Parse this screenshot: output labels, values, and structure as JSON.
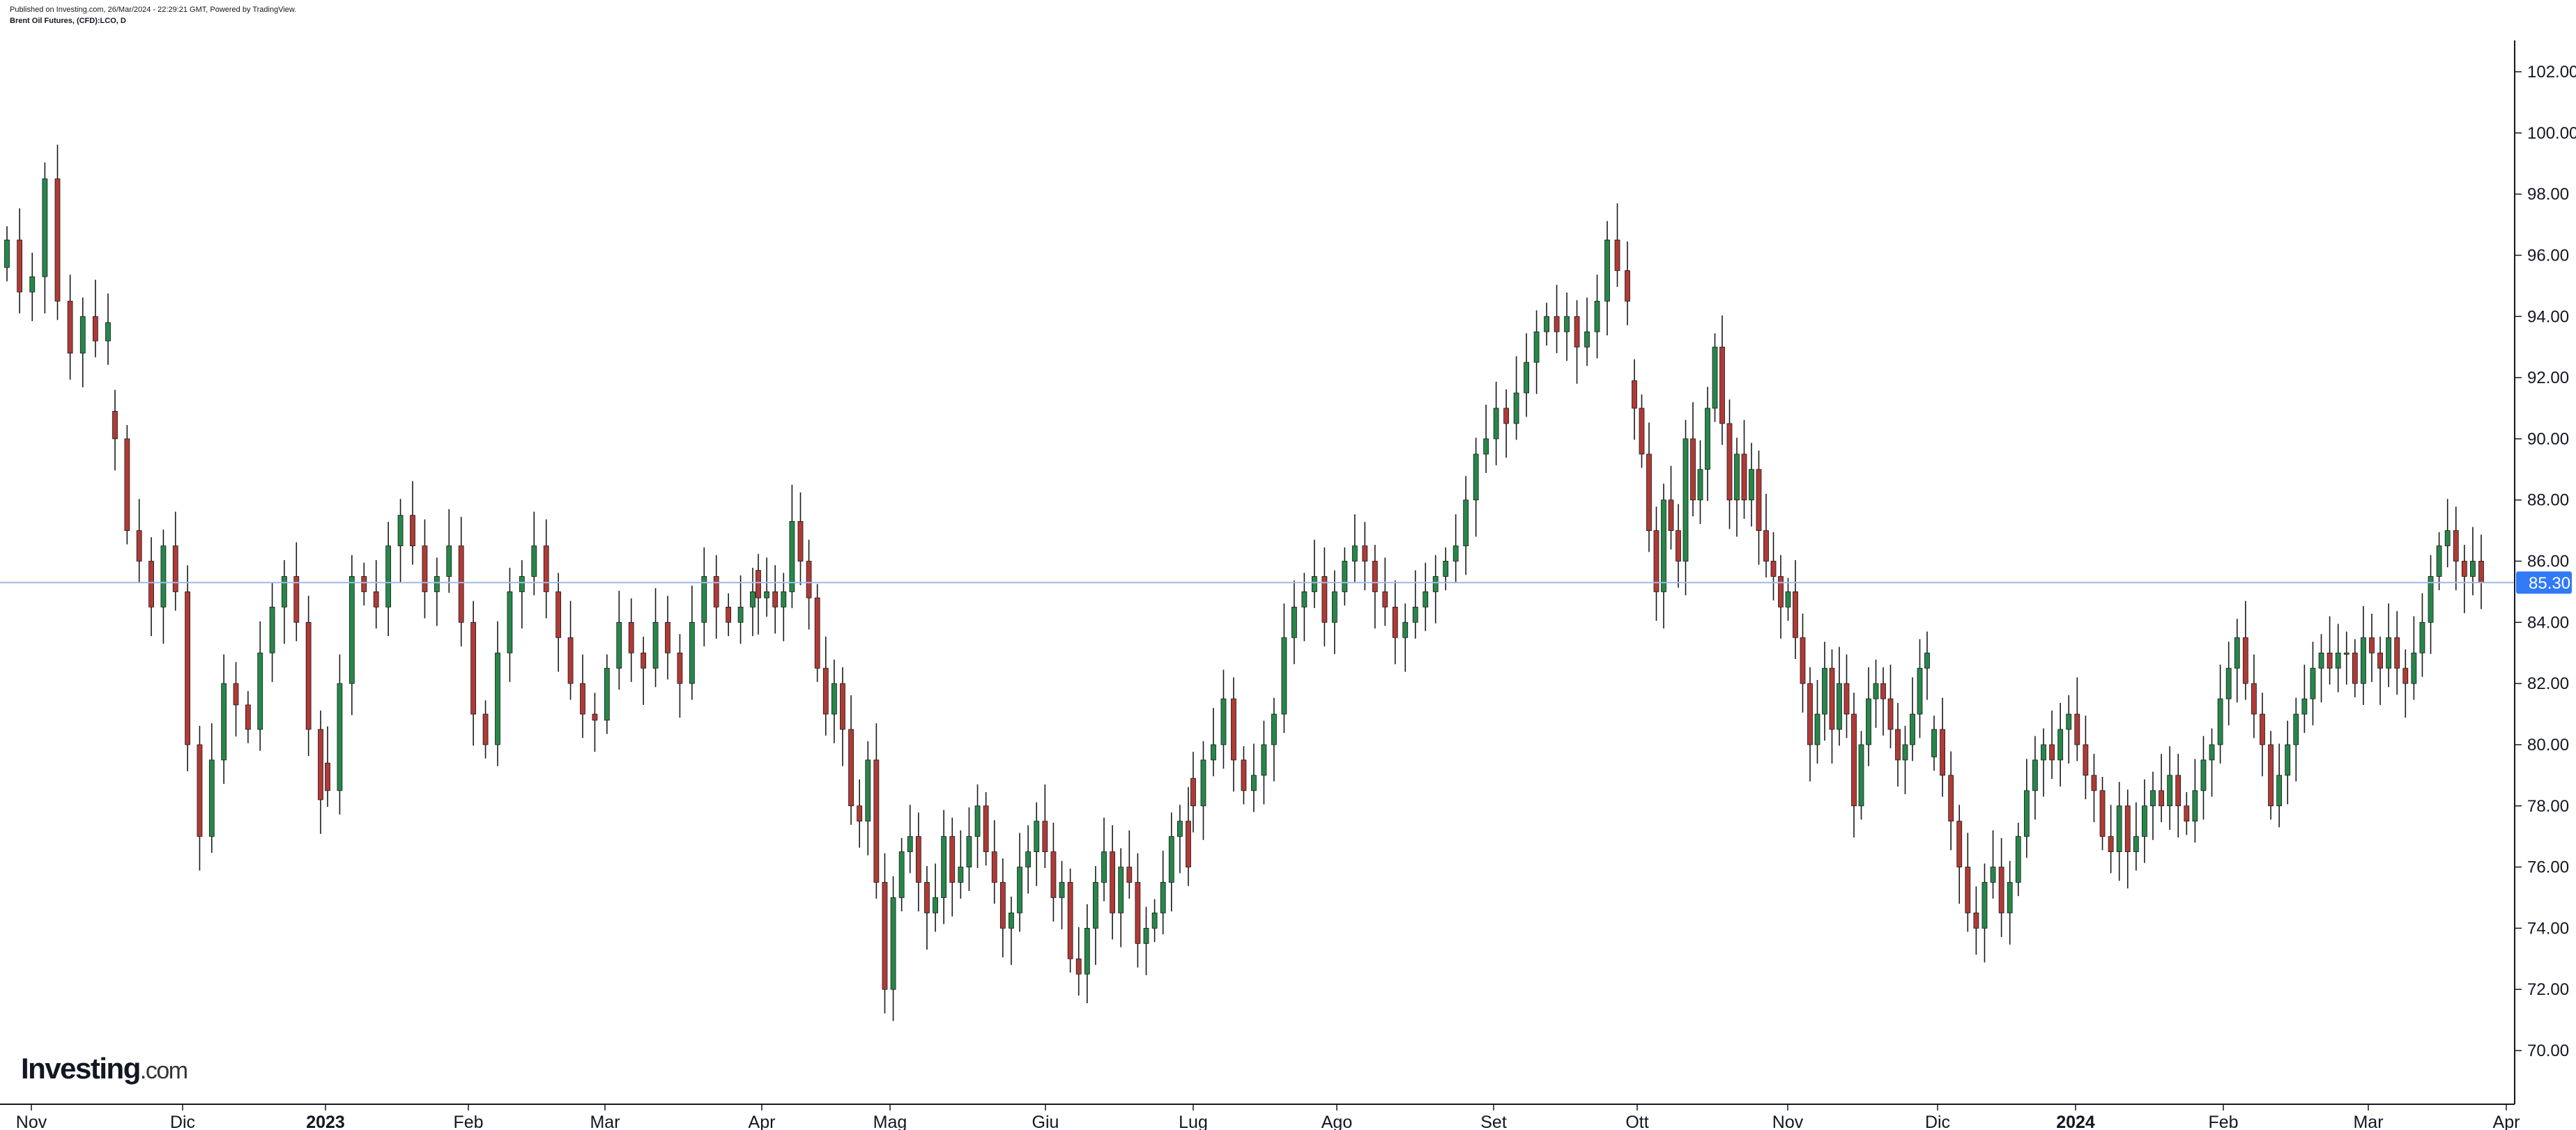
{
  "header": {
    "published": "Published on Investing.com, 26/Mar/2024 - 22:29:21 GMT, Powered by TradingView.",
    "symbol": "Brent Oil Futures, (CFD):LCO, D"
  },
  "logo": {
    "main": "Investing",
    "suffix": ".com"
  },
  "colors": {
    "up": "#26874a",
    "down": "#b03a36",
    "wick": "#1a1a1a",
    "price_line": "#9fb9e6",
    "price_label_bg": "#3179f5"
  },
  "chart_data": {
    "type": "candlestick",
    "title": "Brent Oil Futures, (CFD):LCO, D",
    "ylim": [
      69,
      103
    ],
    "y_ticks": [
      "102.00",
      "100.00",
      "98.00",
      "96.00",
      "94.00",
      "92.00",
      "90.00",
      "88.00",
      "86.00",
      "84.00",
      "82.00",
      "80.00",
      "78.00",
      "76.00",
      "74.00",
      "72.00",
      "70.00"
    ],
    "x_labels": [
      {
        "label": "Nov",
        "bold": false
      },
      {
        "label": "Dic",
        "bold": false
      },
      {
        "label": "2023",
        "bold": true
      },
      {
        "label": "Feb",
        "bold": false
      },
      {
        "label": "Mar",
        "bold": false
      },
      {
        "label": "Apr",
        "bold": false
      },
      {
        "label": "Mag",
        "bold": false
      },
      {
        "label": "Giu",
        "bold": false
      },
      {
        "label": "Lug",
        "bold": false
      },
      {
        "label": "Ago",
        "bold": false
      },
      {
        "label": "Set",
        "bold": false
      },
      {
        "label": "Ott",
        "bold": false
      },
      {
        "label": "Nov",
        "bold": false
      },
      {
        "label": "Dic",
        "bold": false
      },
      {
        "label": "2024",
        "bold": true
      },
      {
        "label": "Feb",
        "bold": false
      },
      {
        "label": "Mar",
        "bold": false
      },
      {
        "label": "Apr",
        "bold": false
      }
    ],
    "current_price": "85.30",
    "closes": [
      {
        "label": "Nov",
        "path": [
          96.5,
          94.8,
          95.3,
          98.5,
          94.5,
          92.8,
          94.0,
          93.2,
          93.8
        ]
      },
      {
        "label": "Dic",
        "path": [
          90.0,
          87.0,
          86.0,
          84.5,
          86.5,
          85.0,
          80.0,
          77.0,
          79.5,
          82.0,
          81.3,
          80.5,
          83.0,
          84.5,
          85.5,
          84.0,
          80.5,
          78.2
        ]
      },
      {
        "label": "2023",
        "path": [
          78.5,
          82.0,
          85.5,
          85.0,
          84.5,
          86.5,
          87.5,
          86.5,
          85.0,
          85.5,
          86.5,
          84.0,
          81.0,
          80.0,
          83.0,
          85.0,
          85.5,
          86.5,
          85.0,
          83.5,
          82.0,
          81.0,
          80.8,
          82.5,
          84.0,
          83.0,
          82.5,
          84.0,
          83.0,
          82.0,
          84.0,
          85.5,
          84.5,
          84.0,
          84.5,
          85.0
        ]
      },
      {
        "label": "Apr",
        "path": [
          84.8,
          85.0,
          84.5,
          85.0,
          87.3,
          86.0,
          84.8,
          82.5,
          81.0,
          82.0,
          80.5,
          78.0,
          77.5,
          79.5,
          75.5,
          72.0,
          75.0,
          76.5,
          77.0,
          75.5,
          74.5,
          75.0,
          77.0,
          75.5,
          76.0,
          77.0,
          78.0,
          76.5,
          75.5,
          74.0,
          74.5,
          76.0,
          76.5,
          77.5,
          76.5,
          75.0,
          75.5,
          73.0,
          72.5,
          74.0,
          75.5,
          76.5,
          74.5,
          76.0,
          75.5,
          73.5,
          74.0,
          74.5,
          75.5,
          77.0,
          77.5,
          76.0
        ]
      },
      {
        "label": "Lug",
        "path": [
          78.0,
          79.5,
          80.0,
          81.5,
          79.5,
          78.5,
          79.0,
          80.0,
          81.0,
          83.5,
          84.5,
          85.0,
          85.5,
          84.0,
          85.0,
          86.0,
          86.5,
          86.0,
          85.0,
          84.5,
          83.5,
          84.0,
          84.5,
          85.0,
          85.5,
          86.0,
          86.5,
          88.0,
          89.5,
          90.0,
          91.0,
          90.5,
          91.5,
          92.5,
          93.5,
          94.0,
          93.5,
          94.0,
          93.0,
          93.5,
          94.5,
          96.5,
          95.5,
          94.5
        ]
      },
      {
        "label": "Ott",
        "path": [
          91.0,
          89.5,
          87.0,
          85.0,
          88.0,
          87.0,
          86.0,
          90.0,
          88.0,
          89.0,
          91.0,
          93.0,
          90.5,
          88.0,
          89.5,
          88.0,
          89.0,
          87.0,
          86.0,
          85.5,
          84.5,
          85.0,
          83.5,
          82.0,
          80.0,
          81.0,
          82.5,
          80.5,
          82.0,
          81.0,
          78.0,
          80.0,
          81.5,
          82.0,
          81.5,
          80.5,
          79.5,
          80.0,
          81.0,
          82.5,
          83.0
        ]
      },
      {
        "label": "Dic",
        "path": [
          80.5,
          79.0,
          77.5,
          76.0,
          74.5,
          74.0,
          75.5,
          76.0,
          74.5,
          75.5,
          77.0,
          78.5,
          79.5,
          80.0,
          79.5,
          80.5,
          81.0,
          80.0,
          79.0,
          78.5,
          77.0,
          76.5,
          78.0,
          76.5,
          77.0,
          78.0,
          78.5,
          78.0,
          79.0,
          78.0,
          77.5,
          78.5,
          79.5,
          80.0,
          81.5,
          82.5,
          83.5,
          82.0,
          81.0,
          80.0,
          78.0,
          79.0,
          80.0,
          81.0,
          81.5,
          82.5,
          83.0,
          82.5,
          83.0,
          83.0,
          82.0,
          83.5,
          83.0,
          82.5,
          83.5,
          82.5,
          82.0,
          83.0,
          84.0,
          85.5,
          86.5,
          87.0,
          86.0,
          85.5,
          86.0,
          85.3
        ]
      }
    ]
  }
}
